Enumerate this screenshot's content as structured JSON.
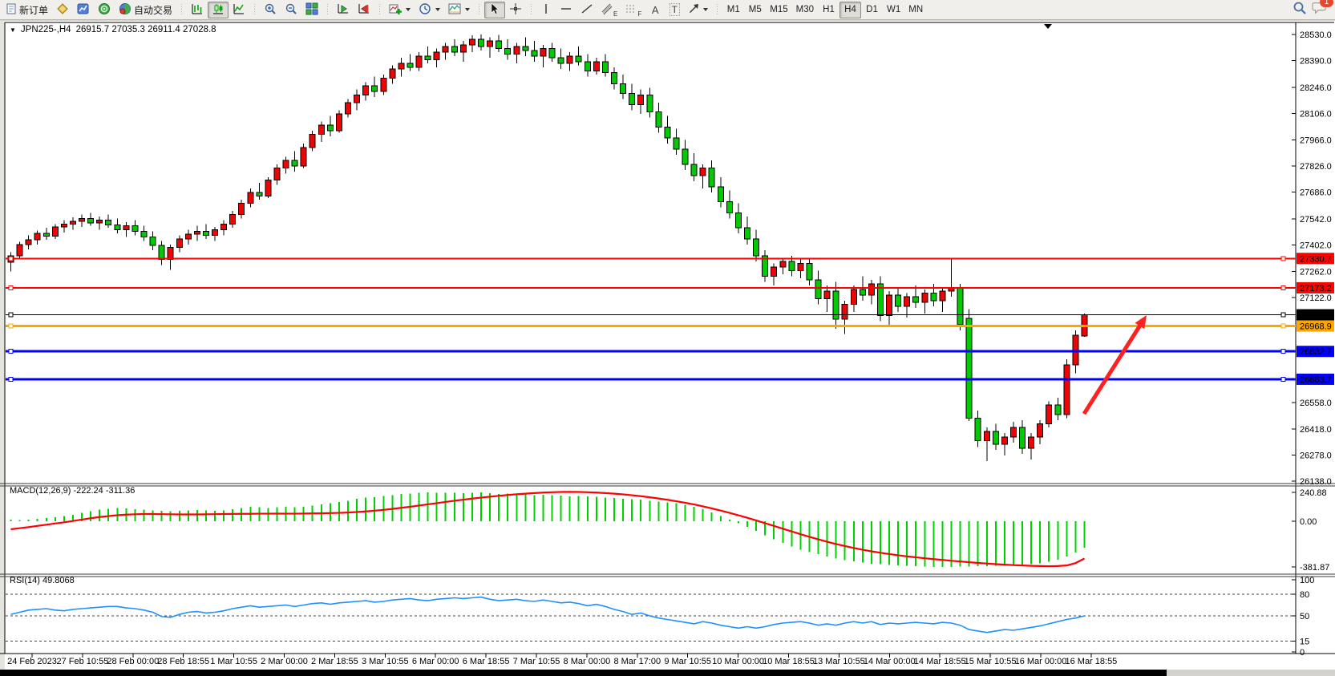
{
  "toolbar": {
    "new_order": "新订单",
    "autotrading": "自动交易",
    "timeframes": [
      "M1",
      "M5",
      "M15",
      "M30",
      "H1",
      "H4",
      "D1",
      "W1",
      "MN"
    ],
    "active_timeframe": "H4",
    "badge_count": "1",
    "glyphs": {
      "text_tool": "A",
      "label_tool": "T",
      "channel": "E",
      "fibonacci": "F",
      "one_click": "▼"
    }
  },
  "chart": {
    "symbol_period": "JPN225-,H4",
    "ohlc": "26915.7 27035.3 26911.4 27028.8",
    "macd_label": "MACD(12,26,9) -222.24 -311.36",
    "rsi_label": "RSI(14) 49.8068"
  },
  "chart_data": {
    "type": "candlestick",
    "symbol": "JPN225-",
    "timeframe": "H4",
    "up_color": "#ee0404",
    "down_color": "#00cb00",
    "wick_color": "#000000",
    "price_axis": {
      "ylim": [
        26138.0,
        28530.0
      ],
      "ticks": [
        28530.0,
        28390.0,
        28246.0,
        28106.0,
        27966.0,
        27826.0,
        27686.0,
        27542.0,
        27402.0,
        27262.0,
        27122.0,
        26558.0,
        26418.0,
        26278.0,
        26138.0
      ]
    },
    "time_axis": [
      "24 Feb 2023",
      "27 Feb 10:55",
      "28 Feb 00:00",
      "28 Feb 18:55",
      "1 Mar 10:55",
      "2 Mar 00:00",
      "2 Mar 18:55",
      "3 Mar 10:55",
      "6 Mar 00:00",
      "6 Mar 18:55",
      "7 Mar 10:55",
      "8 Mar 00:00",
      "8 Mar 17:00",
      "9 Mar 10:55",
      "10 Mar 00:00",
      "10 Mar 18:55",
      "13 Mar 10:55",
      "14 Mar 00:00",
      "14 Mar 18:55",
      "15 Mar 10:55",
      "16 Mar 00:00",
      "16 Mar 18:55"
    ],
    "hlines": [
      {
        "price": 27330.7,
        "color": "#ff0000",
        "width": 2
      },
      {
        "price": 27173.2,
        "color": "#ff0000",
        "width": 2
      },
      {
        "price": 27028.8,
        "color": "#000000",
        "width": 1
      },
      {
        "price": 26968.9,
        "color": "#ffa500",
        "width": 3
      },
      {
        "price": 26832.7,
        "color": "#0000ff",
        "width": 3
      },
      {
        "price": 26683.7,
        "color": "#0000ff",
        "width": 3
      }
    ],
    "arrow_annotation": {
      "direction": "up-right",
      "color": "#ff2020"
    },
    "candles_ohlc": [
      [
        27310,
        27365,
        27260,
        27345
      ],
      [
        27345,
        27420,
        27330,
        27405
      ],
      [
        27405,
        27455,
        27380,
        27430
      ],
      [
        27430,
        27480,
        27405,
        27465
      ],
      [
        27465,
        27495,
        27430,
        27450
      ],
      [
        27450,
        27515,
        27435,
        27500
      ],
      [
        27500,
        27535,
        27470,
        27515
      ],
      [
        27515,
        27550,
        27485,
        27530
      ],
      [
        27530,
        27565,
        27500,
        27545
      ],
      [
        27545,
        27575,
        27505,
        27520
      ],
      [
        27520,
        27555,
        27485,
        27535
      ],
      [
        27535,
        27565,
        27495,
        27510
      ],
      [
        27510,
        27545,
        27465,
        27485
      ],
      [
        27485,
        27525,
        27445,
        27505
      ],
      [
        27505,
        27535,
        27455,
        27475
      ],
      [
        27475,
        27505,
        27425,
        27445
      ],
      [
        27445,
        27475,
        27375,
        27400
      ],
      [
        27400,
        27425,
        27295,
        27325
      ],
      [
        27325,
        27405,
        27270,
        27390
      ],
      [
        27390,
        27455,
        27365,
        27435
      ],
      [
        27435,
        27485,
        27405,
        27460
      ],
      [
        27460,
        27505,
        27425,
        27475
      ],
      [
        27475,
        27515,
        27435,
        27455
      ],
      [
        27455,
        27500,
        27425,
        27485
      ],
      [
        27485,
        27535,
        27455,
        27515
      ],
      [
        27515,
        27585,
        27495,
        27565
      ],
      [
        27565,
        27645,
        27545,
        27625
      ],
      [
        27625,
        27705,
        27605,
        27685
      ],
      [
        27685,
        27735,
        27645,
        27665
      ],
      [
        27665,
        27765,
        27655,
        27750
      ],
      [
        27750,
        27835,
        27725,
        27815
      ],
      [
        27815,
        27875,
        27785,
        27855
      ],
      [
        27855,
        27905,
        27795,
        27825
      ],
      [
        27825,
        27945,
        27815,
        27925
      ],
      [
        27925,
        28015,
        27905,
        27995
      ],
      [
        27995,
        28065,
        27955,
        28045
      ],
      [
        28045,
        28095,
        27985,
        28015
      ],
      [
        28015,
        28125,
        28005,
        28105
      ],
      [
        28105,
        28185,
        28085,
        28165
      ],
      [
        28165,
        28235,
        28125,
        28205
      ],
      [
        28205,
        28275,
        28175,
        28255
      ],
      [
        28255,
        28305,
        28195,
        28225
      ],
      [
        28225,
        28315,
        28205,
        28295
      ],
      [
        28295,
        28365,
        28265,
        28345
      ],
      [
        28345,
        28405,
        28305,
        28375
      ],
      [
        28375,
        28425,
        28335,
        28355
      ],
      [
        28355,
        28435,
        28335,
        28415
      ],
      [
        28415,
        28465,
        28375,
        28395
      ],
      [
        28395,
        28455,
        28355,
        28435
      ],
      [
        28435,
        28485,
        28395,
        28465
      ],
      [
        28465,
        28505,
        28415,
        28435
      ],
      [
        28435,
        28495,
        28385,
        28475
      ],
      [
        28475,
        28525,
        28435,
        28505
      ],
      [
        28505,
        28530,
        28445,
        28465
      ],
      [
        28465,
        28515,
        28405,
        28495
      ],
      [
        28495,
        28528,
        28435,
        28455
      ],
      [
        28455,
        28505,
        28395,
        28425
      ],
      [
        28425,
        28485,
        28375,
        28465
      ],
      [
        28465,
        28515,
        28415,
        28445
      ],
      [
        28445,
        28495,
        28385,
        28415
      ],
      [
        28415,
        28475,
        28355,
        28455
      ],
      [
        28455,
        28485,
        28385,
        28405
      ],
      [
        28405,
        28455,
        28345,
        28375
      ],
      [
        28375,
        28435,
        28335,
        28415
      ],
      [
        28415,
        28465,
        28365,
        28385
      ],
      [
        28385,
        28425,
        28305,
        28335
      ],
      [
        28335,
        28405,
        28315,
        28385
      ],
      [
        28385,
        28425,
        28305,
        28325
      ],
      [
        28325,
        28355,
        28235,
        28265
      ],
      [
        28265,
        28315,
        28185,
        28215
      ],
      [
        28215,
        28265,
        28125,
        28155
      ],
      [
        28155,
        28235,
        28105,
        28205
      ],
      [
        28205,
        28245,
        28085,
        28115
      ],
      [
        28115,
        28165,
        28005,
        28035
      ],
      [
        28035,
        28095,
        27945,
        27975
      ],
      [
        27975,
        28025,
        27885,
        27915
      ],
      [
        27915,
        27965,
        27805,
        27835
      ],
      [
        27835,
        27895,
        27745,
        27775
      ],
      [
        27775,
        27835,
        27705,
        27815
      ],
      [
        27815,
        27855,
        27685,
        27715
      ],
      [
        27715,
        27765,
        27605,
        27635
      ],
      [
        27635,
        27695,
        27545,
        27575
      ],
      [
        27575,
        27625,
        27465,
        27495
      ],
      [
        27495,
        27555,
        27405,
        27435
      ],
      [
        27435,
        27485,
        27315,
        27345
      ],
      [
        27345,
        27375,
        27205,
        27235
      ],
      [
        27235,
        27305,
        27185,
        27285
      ],
      [
        27285,
        27335,
        27245,
        27315
      ],
      [
        27315,
        27345,
        27235,
        27265
      ],
      [
        27265,
        27325,
        27225,
        27305
      ],
      [
        27305,
        27335,
        27185,
        27215
      ],
      [
        27215,
        27265,
        27085,
        27115
      ],
      [
        27115,
        27185,
        27045,
        27155
      ],
      [
        27155,
        27205,
        26955,
        27005
      ],
      [
        27005,
        27105,
        26925,
        27085
      ],
      [
        27085,
        27185,
        27045,
        27165
      ],
      [
        27165,
        27235,
        27105,
        27135
      ],
      [
        27135,
        27215,
        27085,
        27195
      ],
      [
        27195,
        27235,
        26995,
        27025
      ],
      [
        27025,
        27155,
        26965,
        27135
      ],
      [
        27135,
        27175,
        27045,
        27075
      ],
      [
        27075,
        27145,
        27015,
        27125
      ],
      [
        27125,
        27185,
        27065,
        27095
      ],
      [
        27095,
        27165,
        27035,
        27145
      ],
      [
        27145,
        27195,
        27075,
        27105
      ],
      [
        27105,
        27175,
        27045,
        27155
      ],
      [
        27155,
        27330,
        27125,
        27175
      ],
      [
        27175,
        27195,
        26945,
        26975
      ],
      [
        27010,
        27060,
        26460,
        26475
      ],
      [
        26475,
        26515,
        26320,
        26355
      ],
      [
        26355,
        26425,
        26245,
        26405
      ],
      [
        26405,
        26445,
        26305,
        26335
      ],
      [
        26335,
        26395,
        26275,
        26375
      ],
      [
        26375,
        26455,
        26345,
        26425
      ],
      [
        26425,
        26465,
        26285,
        26315
      ],
      [
        26315,
        26395,
        26255,
        26375
      ],
      [
        26375,
        26465,
        26335,
        26445
      ],
      [
        26445,
        26565,
        26425,
        26545
      ],
      [
        26545,
        26585,
        26465,
        26495
      ],
      [
        26495,
        26790,
        26475,
        26760
      ],
      [
        26760,
        26945,
        26715,
        26920
      ],
      [
        26915.7,
        27035.3,
        26911.4,
        27028.8
      ]
    ],
    "macd": {
      "label": "MACD(12,26,9)",
      "current_macd": -222.24,
      "current_signal": -311.36,
      "axis": [
        240.88,
        0.0,
        -381.87
      ],
      "hist_color": "#00d200",
      "signal_color": "#ff0000",
      "histogram": [
        15,
        10,
        14,
        20,
        26,
        32,
        42,
        55,
        70,
        85,
        96,
        105,
        110,
        106,
        101,
        96,
        91,
        86,
        82,
        86,
        91,
        95,
        91,
        87,
        92,
        100,
        110,
        120,
        116,
        112,
        116,
        121,
        117,
        122,
        131,
        141,
        151,
        161,
        171,
        186,
        196,
        202,
        211,
        216,
        226,
        231,
        236,
        240,
        239,
        237,
        239,
        234,
        237,
        240,
        234,
        229,
        231,
        227,
        224,
        219,
        221,
        217,
        214,
        209,
        211,
        207,
        204,
        199,
        194,
        189,
        184,
        179,
        171,
        164,
        157,
        149,
        137,
        119,
        99,
        74,
        44,
        14,
        -16,
        -46,
        -81,
        -116,
        -151,
        -181,
        -211,
        -236,
        -256,
        -276,
        -296,
        -311,
        -326,
        -336,
        -346,
        -353,
        -359,
        -364,
        -369,
        -373,
        -376,
        -378,
        -380,
        -381,
        -380,
        -379,
        -378,
        -376,
        -374,
        -372,
        -370,
        -368,
        -364,
        -358,
        -350,
        -338,
        -322,
        -295,
        -260,
        -222
      ],
      "signal_line": [
        -67,
        -58,
        -49,
        -39,
        -29,
        -19,
        -9,
        2,
        14,
        25,
        35,
        43,
        50,
        55,
        58,
        60,
        60,
        59,
        58,
        57,
        57,
        57,
        58,
        59,
        60,
        61,
        62,
        62,
        63,
        63,
        64,
        63,
        63,
        64,
        65,
        66,
        68,
        70,
        73,
        77,
        82,
        88,
        95,
        103,
        112,
        121,
        131,
        141,
        151,
        161,
        171,
        180,
        189,
        197,
        205,
        212,
        219,
        225,
        230,
        235,
        239,
        242,
        244,
        245,
        244,
        242,
        239,
        235,
        230,
        224,
        217,
        209,
        200,
        190,
        179,
        167,
        154,
        140,
        124,
        107,
        89,
        70,
        50,
        29,
        7,
        -16,
        -39,
        -62,
        -85,
        -108,
        -130,
        -151,
        -171,
        -190,
        -207,
        -223,
        -238,
        -251,
        -263,
        -274,
        -284,
        -293,
        -301,
        -309,
        -316,
        -323,
        -330,
        -336,
        -342,
        -348,
        -353,
        -358,
        -362,
        -366,
        -369,
        -372,
        -374,
        -375,
        -374,
        -369,
        -349,
        -311
      ]
    },
    "rsi": {
      "label": "RSI(14)",
      "current": 49.8068,
      "axis": [
        100,
        80,
        50,
        15,
        0
      ],
      "levels": [
        80,
        50,
        15
      ],
      "color": "#1e90ff",
      "line": [
        52,
        55,
        58,
        59,
        60,
        58,
        57,
        59,
        60,
        61,
        62,
        63,
        63,
        61,
        60,
        58,
        55,
        49,
        48,
        52,
        55,
        56,
        54,
        55,
        57,
        60,
        62,
        64,
        62,
        63,
        64,
        65,
        63,
        65,
        67,
        68,
        66,
        68,
        69,
        70,
        71,
        69,
        70,
        72,
        73,
        74,
        72,
        71,
        73,
        74,
        75,
        74,
        75,
        76,
        73,
        71,
        72,
        73,
        71,
        70,
        72,
        70,
        68,
        69,
        67,
        64,
        66,
        63,
        59,
        56,
        52,
        54,
        50,
        47,
        45,
        43,
        41,
        39,
        42,
        40,
        37,
        35,
        33,
        35,
        33,
        35,
        38,
        40,
        41,
        42,
        40,
        37,
        39,
        37,
        40,
        42,
        40,
        42,
        38,
        40,
        39,
        40,
        41,
        40,
        39,
        41,
        40,
        37,
        31,
        29,
        27,
        29,
        31,
        30,
        32,
        34,
        36,
        39,
        42,
        45,
        47,
        50
      ]
    }
  }
}
